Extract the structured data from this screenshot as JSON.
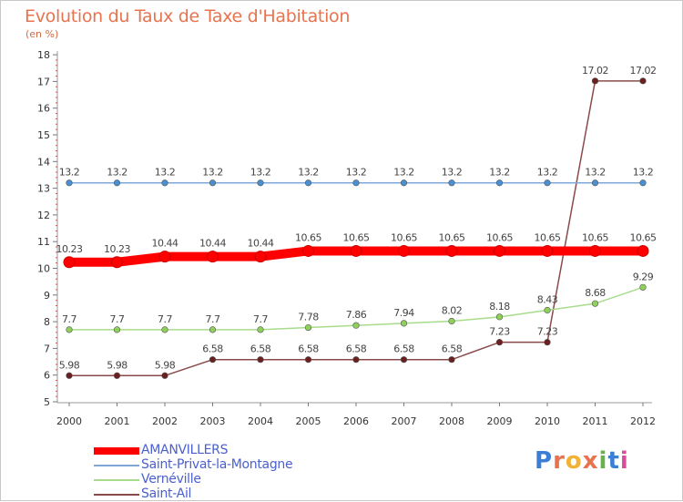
{
  "title": "Evolution du Taux de Taxe d'Habitation",
  "unit": "(en %)",
  "logo": {
    "text": "Proxiti",
    "colors": [
      "#3a7fd5",
      "#e8734f",
      "#f2b233",
      "#e8734f",
      "#6ab04c",
      "#3a7fd5",
      "#d74e9b"
    ]
  },
  "chart_data": {
    "type": "line",
    "title": "Evolution du Taux de Taxe d'Habitation",
    "ylabel": "(en %)",
    "xlabel": "",
    "ylim": [
      5,
      18
    ],
    "yticks": [
      5,
      6,
      7,
      8,
      9,
      10,
      11,
      12,
      13,
      14,
      15,
      16,
      17,
      18
    ],
    "categories": [
      "2000",
      "2001",
      "2002",
      "2003",
      "2004",
      "2005",
      "2006",
      "2007",
      "2008",
      "2009",
      "2010",
      "2011",
      "2012"
    ],
    "grid": false,
    "legend_position": "bottom-left",
    "series": [
      {
        "name": "AMANVILLERS",
        "color": "#ff0000",
        "values": [
          10.23,
          10.23,
          10.44,
          10.44,
          10.44,
          10.65,
          10.65,
          10.65,
          10.65,
          10.65,
          10.65,
          10.65,
          10.65
        ],
        "labels": [
          "10.23",
          "10.23",
          "10.44",
          "10.44",
          "10.44",
          "10.65",
          "10.65",
          "10.65",
          "10.65",
          "10.65",
          "10.65",
          "10.65",
          "10.65"
        ]
      },
      {
        "name": "Saint-Privat-la-Montagne",
        "color": "#7ea7d8",
        "values": [
          13.2,
          13.2,
          13.2,
          13.2,
          13.2,
          13.2,
          13.2,
          13.2,
          13.2,
          13.2,
          13.2,
          13.2,
          13.2
        ],
        "labels": [
          "13.2",
          "13.2",
          "13.2",
          "13.2",
          "13.2",
          "13.2",
          "13.2",
          "13.2",
          "13.2",
          "13.2",
          "13.2",
          "13.2",
          "13.2"
        ]
      },
      {
        "name": "Vernéville",
        "color": "#a8dc8c",
        "values": [
          7.7,
          7.7,
          7.7,
          7.7,
          7.7,
          7.78,
          7.86,
          7.94,
          8.02,
          8.18,
          8.43,
          8.68,
          9.29
        ],
        "labels": [
          "7.7",
          "7.7",
          "7.7",
          "7.7",
          "7.7",
          "7.78",
          "7.86",
          "7.94",
          "8.02",
          "8.18",
          "8.43",
          "8.68",
          "9.29"
        ]
      },
      {
        "name": "Saint-Ail",
        "color": "#8b4a4a",
        "values": [
          5.98,
          5.98,
          5.98,
          6.58,
          6.58,
          6.58,
          6.58,
          6.58,
          6.58,
          7.23,
          7.23,
          17.02,
          17.02
        ],
        "labels": [
          "5.98",
          "5.98",
          "5.98",
          "6.58",
          "6.58",
          "6.58",
          "6.58",
          "6.58",
          "6.58",
          "7.23",
          "7.23",
          "17.02",
          "17.02"
        ]
      }
    ]
  }
}
